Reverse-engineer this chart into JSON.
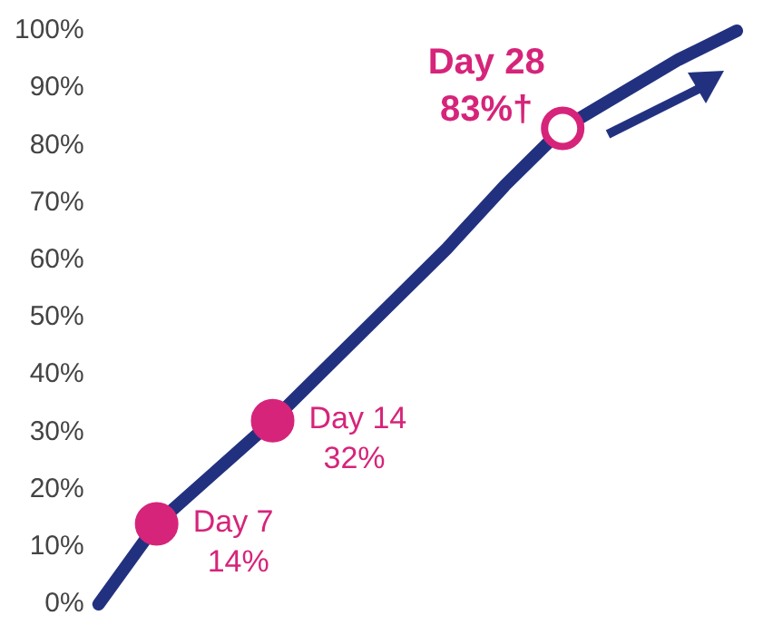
{
  "chart_data": {
    "type": "line",
    "categories": [
      null,
      null,
      null,
      null,
      null,
      null,
      null,
      null,
      null,
      null,
      null,
      null
    ],
    "ylim": [
      0,
      100
    ],
    "yticks": [
      {
        "value": 0,
        "label": "0%"
      },
      {
        "value": 10,
        "label": "10%"
      },
      {
        "value": 20,
        "label": "20%"
      },
      {
        "value": 30,
        "label": "30%"
      },
      {
        "value": 40,
        "label": "40%"
      },
      {
        "value": 50,
        "label": "50%"
      },
      {
        "value": 60,
        "label": "60%"
      },
      {
        "value": 70,
        "label": "70%"
      },
      {
        "value": 80,
        "label": "80%"
      },
      {
        "value": 90,
        "label": "90%"
      },
      {
        "value": 100,
        "label": "100%"
      }
    ],
    "tick_labels": "y",
    "grid": false,
    "legend": false,
    "series": [
      {
        "color": "#22317f",
        "values": [
          0,
          14,
          23,
          32,
          42,
          52,
          62,
          73,
          83,
          89,
          95,
          100
        ],
        "colors": [
          null,
          "#d6247a",
          null,
          "#d6247a",
          null,
          null,
          null,
          null,
          "#ffffff",
          null,
          null,
          null
        ],
        "value_labels": [
          null,
          "Day 7\n14%",
          null,
          "Day 14\n32%",
          null,
          null,
          null,
          null,
          "Day 28\n83%†",
          null,
          null,
          null
        ]
      }
    ]
  }
}
